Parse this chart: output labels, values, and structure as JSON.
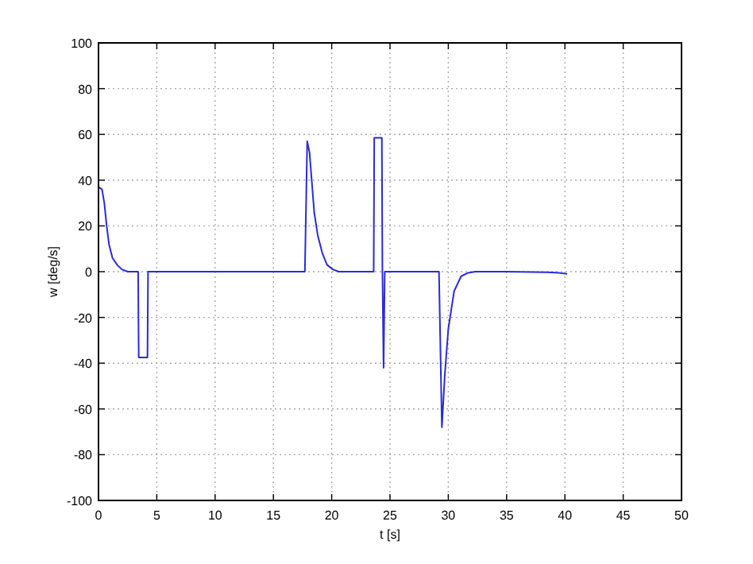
{
  "chart_data": {
    "type": "line",
    "xlabel": "t [s]",
    "ylabel": "w [deg/s]",
    "xlim": [
      0,
      50
    ],
    "ylim": [
      -100,
      100
    ],
    "xticks": [
      0,
      5,
      10,
      15,
      20,
      25,
      30,
      35,
      40,
      45,
      50
    ],
    "yticks": [
      -100,
      -80,
      -60,
      -40,
      -20,
      0,
      20,
      40,
      60,
      80,
      100
    ],
    "grid": true,
    "line_style": "solid",
    "marker": "none",
    "series": [
      {
        "color": "#2b2bd9",
        "x": [
          0,
          0.3,
          0.5,
          0.7,
          0.9,
          1.2,
          1.6,
          2,
          2.5,
          3.4,
          3.45,
          4.2,
          4.25,
          17.7,
          17.9,
          18.1,
          18.5,
          18.8,
          19.2,
          19.6,
          20.1,
          20.6,
          23.6,
          23.65,
          24.3,
          24.35,
          24.45,
          24.55,
          29.2,
          29.45,
          29.7,
          30,
          30.5,
          31.1,
          31.7,
          32.3,
          35,
          38.5,
          39.5,
          40.2
        ],
        "values": [
          37,
          36,
          30,
          20,
          12,
          6,
          3,
          1,
          0,
          0,
          -37.5,
          -37.5,
          0,
          0,
          57,
          52,
          26,
          16,
          8,
          3,
          1,
          0,
          0,
          58.5,
          58.5,
          0,
          -42,
          0,
          0,
          -68,
          -45,
          -25,
          -8.5,
          -2,
          -0.5,
          0,
          0,
          -0.3,
          -0.5,
          -1
        ]
      }
    ]
  }
}
